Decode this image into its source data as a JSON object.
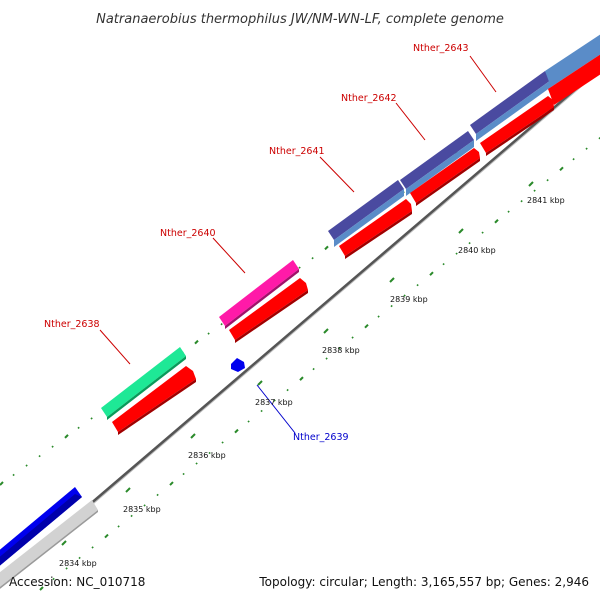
{
  "title": "Natranaerobius thermophilus JW/NM-WN-LF, complete genome",
  "footer": {
    "accession": "Accession: NC_010718",
    "topology": "Topology: circular; Length: 3,165,557 bp; Genes: 2,946"
  },
  "colors": {
    "forward_label": "#cc0000",
    "reverse_label": "#0000cc",
    "tick": "#2a8a2a",
    "backbone": "#888888",
    "cds": "#ff0000"
  },
  "ticks": [
    {
      "label": "2834 kbp"
    },
    {
      "label": "2835 kbp"
    },
    {
      "label": "2836 kbp"
    },
    {
      "label": "2837 kbp"
    },
    {
      "label": "2838 kbp"
    },
    {
      "label": "2839 kbp"
    },
    {
      "label": "2840 kbp"
    },
    {
      "label": "2841 kbp"
    }
  ],
  "genes": [
    {
      "label": "Nther_2638",
      "strand": "forward",
      "color": "#1ee896"
    },
    {
      "label": "Nther_2639",
      "strand": "reverse",
      "color": "#0000ff"
    },
    {
      "label": "Nther_2640",
      "strand": "forward",
      "color": "#ff1aa8"
    },
    {
      "label": "Nther_2641",
      "strand": "forward",
      "color": "#4a4aa0"
    },
    {
      "label": "Nther_2642",
      "strand": "forward",
      "color": "#4a4aa0"
    },
    {
      "label": "Nther_2643",
      "strand": "forward",
      "color": "#4a4aa0"
    }
  ]
}
